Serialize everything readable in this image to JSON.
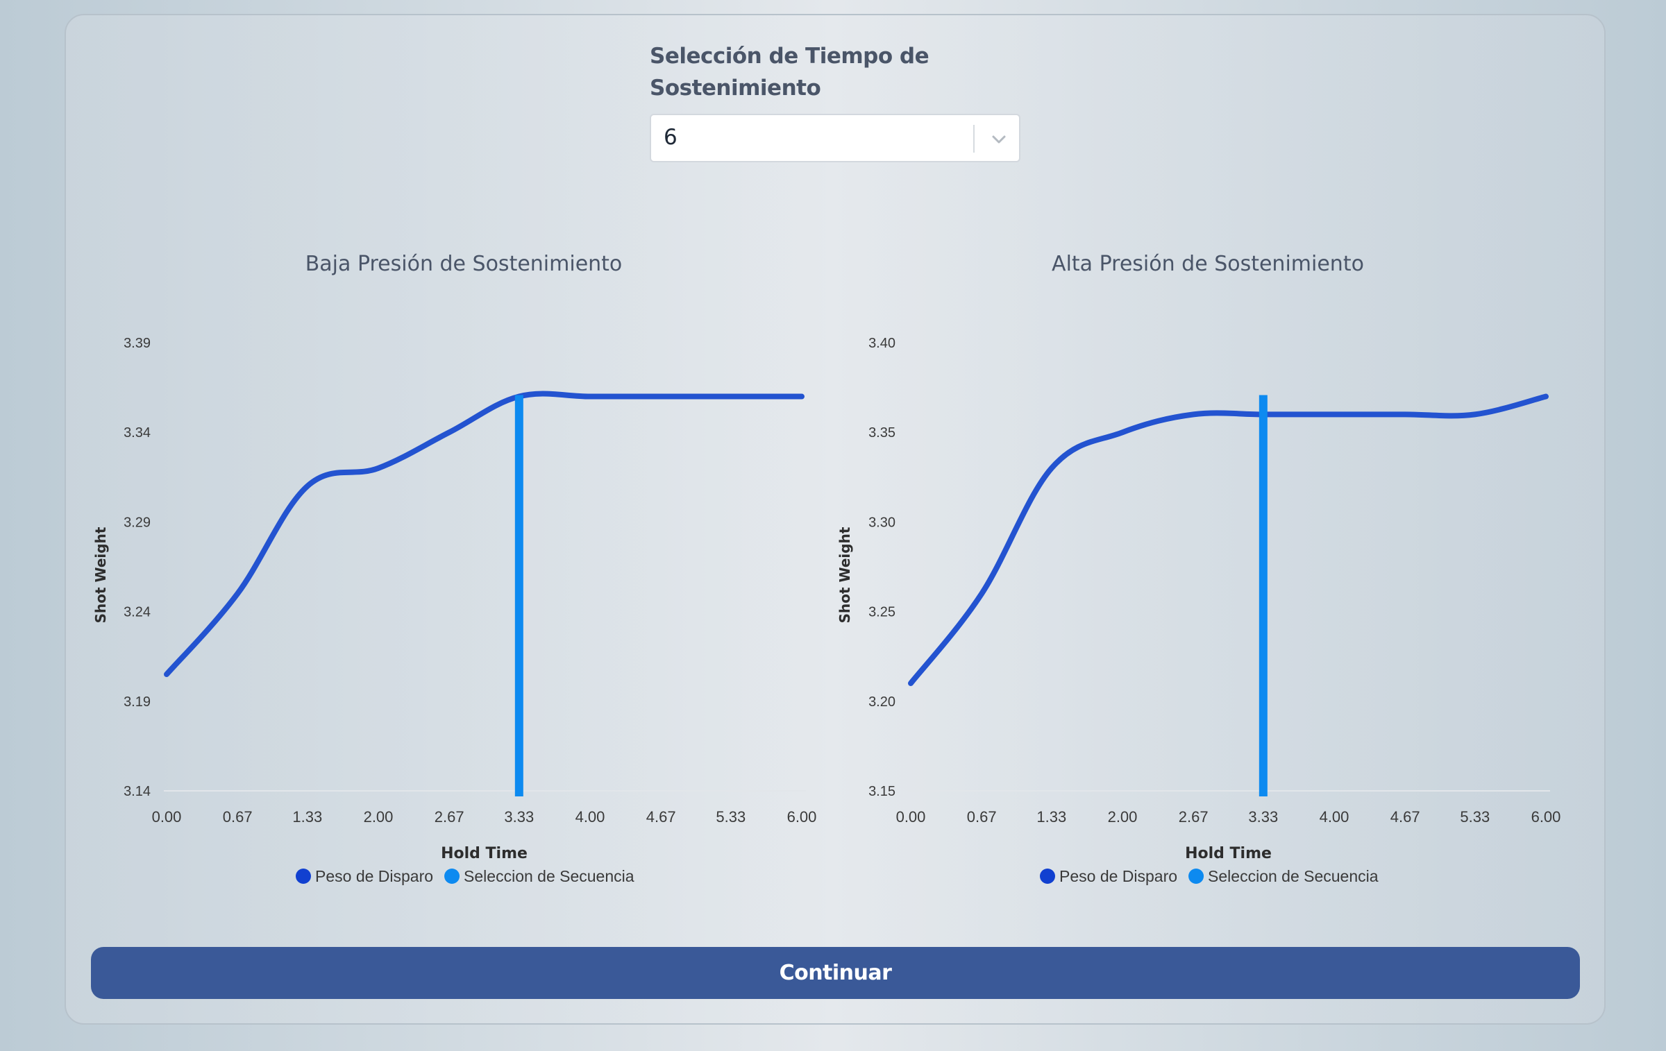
{
  "selector": {
    "label": "Selección de Tiempo de Sostenimiento",
    "value": "6"
  },
  "continue_label": "Continuar",
  "colors": {
    "series_line": "#2353d0",
    "selection_line": "#0d8af0",
    "legend_primary": "#1140d0",
    "legend_secondary": "#0d8af0",
    "button": "#3a5998"
  },
  "chart_data": [
    {
      "type": "line",
      "title": "Baja Presión de Sostenimiento",
      "xlabel": "Hold Time",
      "ylabel": "Shot Weight",
      "x_ticks": [
        "0.00",
        "0.67",
        "1.33",
        "2.00",
        "2.67",
        "3.33",
        "4.00",
        "4.67",
        "5.33",
        "6.00"
      ],
      "y_ticks": [
        "3.39",
        "3.34",
        "3.29",
        "3.24",
        "3.19",
        "3.14"
      ],
      "xlim": [
        0,
        6
      ],
      "ylim": [
        3.14,
        3.39
      ],
      "series": [
        {
          "name": "Peso de Disparo",
          "x": [
            0,
            0.67,
            1.33,
            2.0,
            2.67,
            3.33,
            4.0,
            4.67,
            5.33,
            6.0
          ],
          "y": [
            3.205,
            3.25,
            3.31,
            3.32,
            3.34,
            3.36,
            3.36,
            3.36,
            3.36,
            3.36
          ]
        },
        {
          "name": "Seleccion de Secuencia",
          "x": [
            3.33,
            3.33
          ],
          "y": [
            3.14,
            3.36
          ]
        }
      ],
      "legend": [
        "Peso de Disparo",
        "Seleccion de Secuencia"
      ],
      "legend_position": "bottom"
    },
    {
      "type": "line",
      "title": "Alta Presión de Sostenimiento",
      "xlabel": "Hold Time",
      "ylabel": "Shot Weight",
      "x_ticks": [
        "0.00",
        "0.67",
        "1.33",
        "2.00",
        "2.67",
        "3.33",
        "4.00",
        "4.67",
        "5.33",
        "6.00"
      ],
      "y_ticks": [
        "3.40",
        "3.35",
        "3.30",
        "3.25",
        "3.20",
        "3.15"
      ],
      "xlim": [
        0,
        6
      ],
      "ylim": [
        3.15,
        3.4
      ],
      "series": [
        {
          "name": "Peso de Disparo",
          "x": [
            0,
            0.67,
            1.33,
            2.0,
            2.67,
            3.33,
            4.0,
            4.67,
            5.33,
            6.0
          ],
          "y": [
            3.21,
            3.26,
            3.33,
            3.35,
            3.36,
            3.36,
            3.36,
            3.36,
            3.36,
            3.37
          ]
        },
        {
          "name": "Seleccion de Secuencia",
          "x": [
            3.33,
            3.33
          ],
          "y": [
            3.15,
            3.37
          ]
        }
      ],
      "legend": [
        "Peso de Disparo",
        "Seleccion de Secuencia"
      ],
      "legend_position": "bottom"
    }
  ]
}
